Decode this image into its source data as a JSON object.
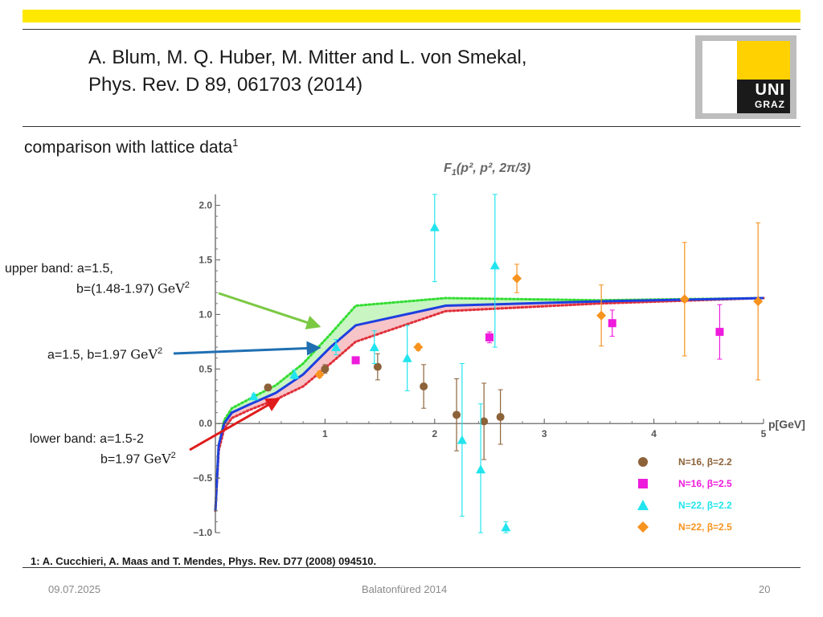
{
  "header": {
    "title_line1": "A.  Blum, M. Q. Huber, M. Mitter and L. von Smekal,",
    "title_line2": "Phys. Rev. D 89, 061703 (2014)",
    "logo_text_1": "UNI",
    "logo_text_2": "GRAZ"
  },
  "subtitle": {
    "text": "comparison with lattice data",
    "sup": "1"
  },
  "annotations": {
    "upper_line1": "upper band: a=1.5,",
    "upper_line2": "b=(1.48-1.97) ",
    "mid_prefix": "a=1.5, b=1.97 ",
    "lower_line1": "lower band: a=1.5-2",
    "lower_line2": "b=1.97 ",
    "gev": "GeV",
    "gev_exp": "2",
    "arrow_colors": {
      "upper": "#7ac943",
      "mid": "#1f6fb2",
      "lower": "#e01b1b"
    }
  },
  "chart_data": {
    "type": "line",
    "title": "F1(p², p², 2π/3)",
    "title_main": "F",
    "title_sub": "1",
    "title_args": "(p², p², 2π/3)",
    "xlabel": "p[GeV]",
    "ylabel": "",
    "xlim": [
      0,
      5
    ],
    "ylim": [
      -1.0,
      2.1
    ],
    "x_ticks": [
      1,
      2,
      3,
      4,
      5
    ],
    "x_tick_labels": [
      "1",
      "2",
      "3",
      "4",
      "5"
    ],
    "y_ticks": [
      -1.0,
      -0.5,
      0.0,
      0.5,
      1.0,
      1.5,
      2.0
    ],
    "y_tick_labels": [
      "−1.0",
      "−0.5",
      "0.0",
      "0.5",
      "1.0",
      "1.5",
      "2.0"
    ],
    "bands": [
      {
        "name": "upper band (a=1.5, b=1.48-1.97)",
        "color": "#c9f5c3",
        "upper": [
          [
            0.0,
            -0.8
          ],
          [
            0.03,
            -0.2
          ],
          [
            0.08,
            0.03
          ],
          [
            0.15,
            0.14
          ],
          [
            0.3,
            0.22
          ],
          [
            0.55,
            0.35
          ],
          [
            0.8,
            0.55
          ],
          [
            1.05,
            0.82
          ],
          [
            1.28,
            1.08
          ],
          [
            2.1,
            1.15
          ],
          [
            3.5,
            1.13
          ],
          [
            5.0,
            1.15
          ]
        ],
        "lower": [
          [
            0.0,
            -0.8
          ],
          [
            0.03,
            -0.2
          ],
          [
            0.08,
            0.0
          ],
          [
            0.15,
            0.1
          ],
          [
            0.3,
            0.17
          ],
          [
            0.55,
            0.28
          ],
          [
            0.8,
            0.45
          ],
          [
            1.05,
            0.7
          ],
          [
            1.28,
            0.9
          ],
          [
            2.1,
            1.08
          ],
          [
            3.5,
            1.12
          ],
          [
            5.0,
            1.15
          ]
        ]
      },
      {
        "name": "lower band (a=1.5-2, b=1.97)",
        "color": "#f7c4c8",
        "upper": [
          [
            0.0,
            -0.8
          ],
          [
            0.03,
            -0.2
          ],
          [
            0.08,
            0.0
          ],
          [
            0.15,
            0.1
          ],
          [
            0.3,
            0.17
          ],
          [
            0.55,
            0.28
          ],
          [
            0.8,
            0.45
          ],
          [
            1.05,
            0.7
          ],
          [
            1.28,
            0.9
          ],
          [
            2.1,
            1.08
          ],
          [
            3.5,
            1.12
          ],
          [
            5.0,
            1.15
          ]
        ],
        "lower": [
          [
            0.0,
            -0.8
          ],
          [
            0.03,
            -0.25
          ],
          [
            0.08,
            -0.05
          ],
          [
            0.15,
            0.05
          ],
          [
            0.3,
            0.12
          ],
          [
            0.55,
            0.22
          ],
          [
            0.8,
            0.34
          ],
          [
            1.05,
            0.55
          ],
          [
            1.28,
            0.75
          ],
          [
            2.1,
            1.03
          ],
          [
            3.5,
            1.1
          ],
          [
            5.0,
            1.15
          ]
        ]
      }
    ],
    "lines": [
      {
        "name": "upper band edge",
        "color": "#33dd33",
        "style": "dotted",
        "points": [
          [
            0.0,
            -0.8
          ],
          [
            0.03,
            -0.2
          ],
          [
            0.08,
            0.03
          ],
          [
            0.15,
            0.14
          ],
          [
            0.3,
            0.22
          ],
          [
            0.55,
            0.35
          ],
          [
            0.8,
            0.55
          ],
          [
            1.05,
            0.82
          ],
          [
            1.28,
            1.08
          ],
          [
            2.1,
            1.15
          ],
          [
            3.5,
            1.13
          ],
          [
            5.0,
            1.15
          ]
        ]
      },
      {
        "name": "lower band edge",
        "color": "#e0303a",
        "style": "dotted",
        "points": [
          [
            0.0,
            -0.8
          ],
          [
            0.03,
            -0.25
          ],
          [
            0.08,
            -0.05
          ],
          [
            0.15,
            0.05
          ],
          [
            0.3,
            0.12
          ],
          [
            0.55,
            0.22
          ],
          [
            0.8,
            0.34
          ],
          [
            1.05,
            0.55
          ],
          [
            1.28,
            0.75
          ],
          [
            2.1,
            1.03
          ],
          [
            3.5,
            1.1
          ],
          [
            5.0,
            1.15
          ]
        ]
      },
      {
        "name": "a=1.5, b=1.97",
        "color": "#1e3fe0",
        "style": "solid",
        "points": [
          [
            0.0,
            -0.8
          ],
          [
            0.03,
            -0.2
          ],
          [
            0.08,
            0.0
          ],
          [
            0.15,
            0.1
          ],
          [
            0.3,
            0.17
          ],
          [
            0.55,
            0.28
          ],
          [
            0.8,
            0.45
          ],
          [
            1.05,
            0.7
          ],
          [
            1.28,
            0.9
          ],
          [
            2.1,
            1.08
          ],
          [
            3.5,
            1.12
          ],
          [
            5.0,
            1.15
          ]
        ]
      }
    ],
    "series": [
      {
        "name": "N=16, β=2.2",
        "color": "#8c6239",
        "marker": "circle",
        "points": [
          [
            0.48,
            0.33,
            0.03
          ],
          [
            1.0,
            0.5,
            0.04
          ],
          [
            1.48,
            0.52,
            0.12
          ],
          [
            1.9,
            0.34,
            0.2
          ],
          [
            2.2,
            0.08,
            0.33
          ],
          [
            2.45,
            0.02,
            0.35
          ],
          [
            2.6,
            0.06,
            0.25
          ]
        ]
      },
      {
        "name": "N=16, β=2.5",
        "color": "#ee1bdc",
        "marker": "square",
        "points": [
          [
            1.28,
            0.58,
            0.02
          ],
          [
            2.5,
            0.79,
            0.05
          ],
          [
            3.62,
            0.92,
            0.12
          ],
          [
            4.6,
            0.84,
            0.25
          ]
        ]
      },
      {
        "name": "N=22, β=2.2",
        "color": "#22e4ee",
        "marker": "triangle",
        "points": [
          [
            0.35,
            0.25,
            0.02
          ],
          [
            0.72,
            0.45,
            0.04
          ],
          [
            1.1,
            0.7,
            0.07
          ],
          [
            1.45,
            0.7,
            0.15
          ],
          [
            1.75,
            0.6,
            0.3
          ],
          [
            2.0,
            1.8,
            0.5
          ],
          [
            2.25,
            -0.15,
            0.7
          ],
          [
            2.42,
            -0.42,
            0.6
          ],
          [
            2.55,
            1.45,
            0.75
          ],
          [
            2.65,
            -0.95,
            0.05
          ]
        ]
      },
      {
        "name": "N=22, β=2.5",
        "color": "#f7931e",
        "marker": "diamond",
        "points": [
          [
            0.95,
            0.45,
            0.03
          ],
          [
            1.85,
            0.7,
            0.03
          ],
          [
            2.75,
            1.33,
            0.13
          ],
          [
            3.52,
            0.99,
            0.28
          ],
          [
            4.28,
            1.14,
            0.52
          ],
          [
            4.95,
            1.12,
            0.72
          ]
        ]
      }
    ],
    "legend": [
      {
        "label": "N=16, β=2.2",
        "color": "#8c6239",
        "marker": "circle"
      },
      {
        "label": "N=16, β=2.5",
        "color": "#ee1bdc",
        "marker": "square"
      },
      {
        "label": "N=22, β=2.2",
        "color": "#22e4ee",
        "marker": "triangle"
      },
      {
        "label": "N=22, β=2.5",
        "color": "#f7931e",
        "marker": "diamond"
      }
    ],
    "legend_position": "bottom-right"
  },
  "footnote": "1: A. Cucchieri, A. Maas and T. Mendes, Phys. Rev. D77 (2008) 094510.",
  "footer": {
    "date": "09.07.2025",
    "event": "Balatonfüred 2014",
    "page": "20"
  }
}
